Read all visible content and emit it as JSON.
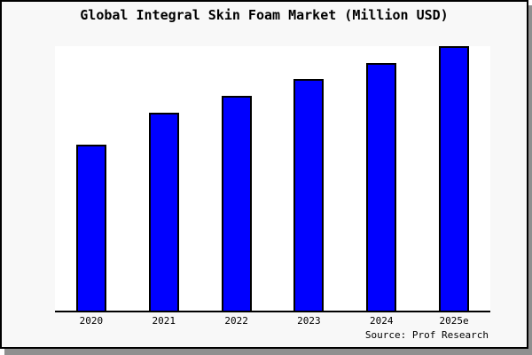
{
  "window": {
    "figure_background": "#f8f8f8",
    "plot_background": "#ffffff",
    "border_color": "#000000",
    "shadow_color": "#8f8f8f"
  },
  "chart": {
    "title": "Global Integral Skin Foam Market (Million USD)",
    "source": "Source: Prof Research"
  },
  "chart_data": {
    "type": "bar",
    "title": "Global Integral Skin Foam Market (Million USD)",
    "categories": [
      "2020",
      "2021",
      "2022",
      "2023",
      "2024",
      "2025e"
    ],
    "values": [
      62.7,
      75.0,
      81.3,
      87.7,
      93.7,
      100.0
    ],
    "values_note": "y-axis has no tick labels; values are relative bar heights with 2025e = 100",
    "xlabel": "",
    "ylabel": "",
    "ylim": [
      0,
      100
    ],
    "grid": false,
    "legend": false,
    "bar_color": "#0000ff",
    "bar_edge_color": "#000000",
    "source": "Source: Prof Research"
  }
}
